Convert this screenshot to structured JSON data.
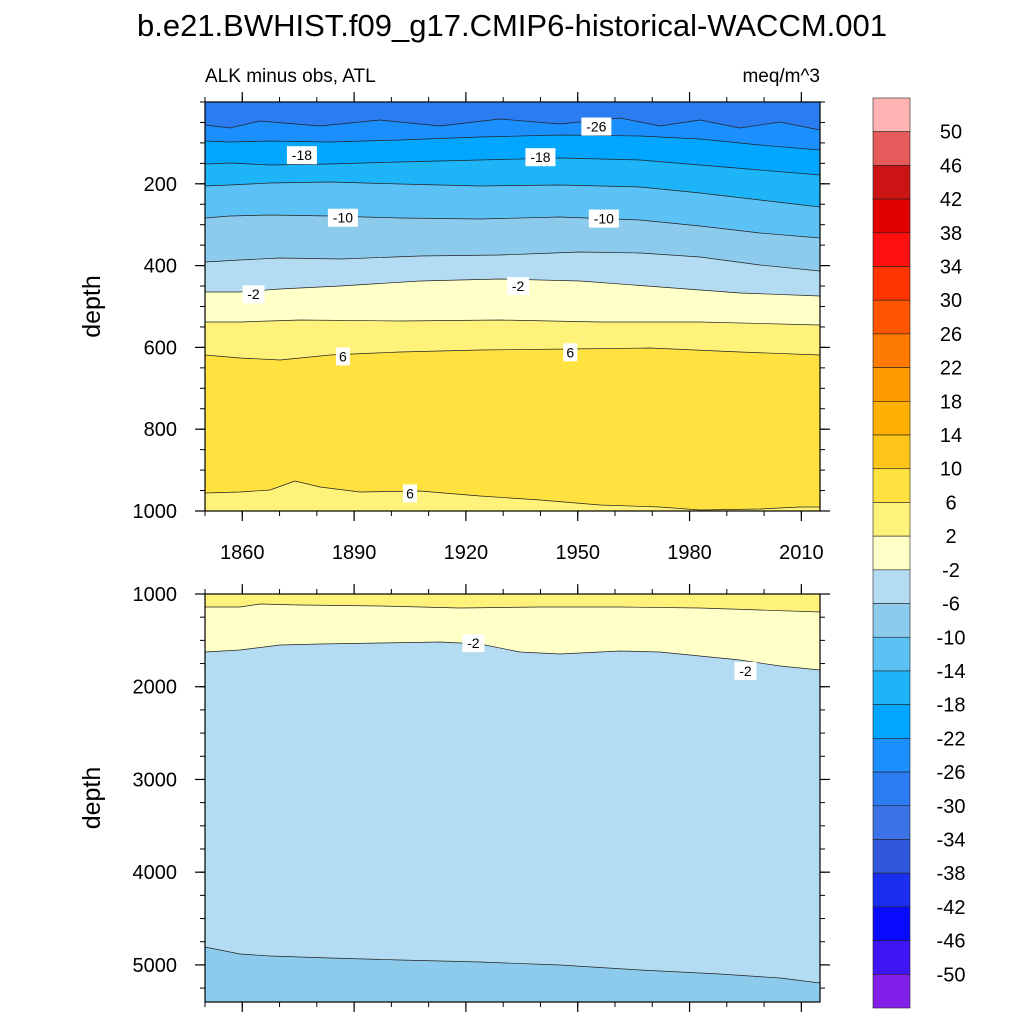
{
  "title": "b.e21.BWHIST.f09_g17.CMIP6-historical-WACCM.001",
  "chart_data": {
    "type": "contour",
    "subtitle_left": "ALK minus obs, ATL",
    "subtitle_right": "meq/m^3",
    "ylabel": "depth",
    "x_ticks": [
      "1860",
      "1890",
      "1920",
      "1950",
      "1980",
      "2010"
    ],
    "x_tick_values": [
      1860,
      1890,
      1920,
      1950,
      1980,
      2010
    ],
    "xlim": [
      1850,
      2015
    ],
    "panels": [
      {
        "name": "upper",
        "ylim": [
          0,
          1000
        ],
        "y_ticks": [
          "200",
          "400",
          "600",
          "800",
          "1000"
        ],
        "y_tick_values": [
          200,
          400,
          600,
          800,
          1000
        ],
        "contour_labels": [
          {
            "text": "-26",
            "year": 1955,
            "depth": 60
          },
          {
            "text": "-18",
            "year": 1876,
            "depth": 130
          },
          {
            "text": "-18",
            "year": 1940,
            "depth": 135
          },
          {
            "text": "-10",
            "year": 1887,
            "depth": 283
          },
          {
            "text": "-10",
            "year": 1957,
            "depth": 285
          },
          {
            "text": "-2",
            "year": 1863,
            "depth": 470
          },
          {
            "text": "-2",
            "year": 1934,
            "depth": 450
          },
          {
            "text": "6",
            "year": 1887,
            "depth": 622
          },
          {
            "text": "6",
            "year": 1948,
            "depth": 612
          },
          {
            "text": "6",
            "year": 1905,
            "depth": 957
          }
        ]
      },
      {
        "name": "lower",
        "ylim": [
          1000,
          5400
        ],
        "y_ticks": [
          "1000",
          "2000",
          "3000",
          "4000",
          "5000"
        ],
        "y_tick_values": [
          1000,
          2000,
          3000,
          4000,
          5000
        ],
        "contour_labels": [
          {
            "text": "-2",
            "year": 1922,
            "depth": 1530
          },
          {
            "text": "-2",
            "year": 1995,
            "depth": 1830
          }
        ]
      }
    ],
    "colorbar": {
      "labels": [
        "50",
        "46",
        "42",
        "38",
        "34",
        "30",
        "26",
        "22",
        "18",
        "14",
        "10",
        "6",
        "2",
        "-2",
        "-6",
        "-10",
        "-14",
        "-18",
        "-22",
        "-26",
        "-30",
        "-34",
        "-38",
        "-42",
        "-46",
        "-50"
      ],
      "colors": [
        "#ffb3b3",
        "#e55a5a",
        "#cc1414",
        "#e00000",
        "#ff1010",
        "#ff3300",
        "#ff5500",
        "#ff7a00",
        "#ff9900",
        "#ffb000",
        "#ffc61a",
        "#ffe23f",
        "#fff27a",
        "#ffffc8",
        "#b3dcf2",
        "#8ccbec",
        "#5cc2f5",
        "#1eb4f8",
        "#00a6ff",
        "#1c8fff",
        "#2a7cf0",
        "#3b72e6",
        "#3158dc",
        "#1a2ef0",
        "#0a0aff",
        "#3f14f5",
        "#8220ea"
      ]
    }
  }
}
